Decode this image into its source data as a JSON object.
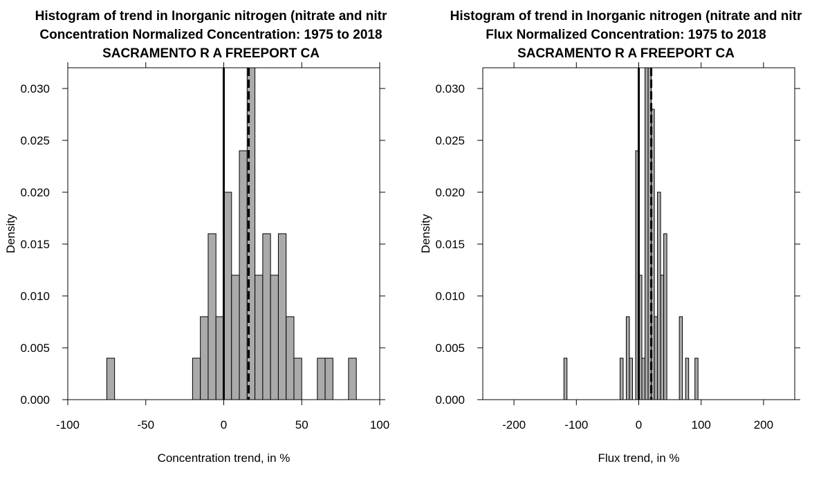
{
  "chart_data": [
    {
      "type": "histogram",
      "title_lines": [
        "Histogram of trend in Inorganic nitrogen (nitrate and nitr",
        "Concentration Normalized Concentration: 1975 to 2018",
        "SACRAMENTO R A FREEPORT CA"
      ],
      "xlabel": "Concentration trend, in %",
      "ylabel": "Density",
      "xlim": [
        -100,
        100
      ],
      "ylim": [
        0,
        0.032
      ],
      "x_ticks": [
        -100,
        -50,
        0,
        50,
        100
      ],
      "x_tick_labels": [
        "-100",
        "-50",
        "0",
        "50",
        "100"
      ],
      "y_ticks": [
        0,
        0.005,
        0.01,
        0.015,
        0.02,
        0.025,
        0.03
      ],
      "y_tick_labels": [
        "0.000",
        "0.005",
        "0.010",
        "0.015",
        "0.020",
        "0.025",
        "0.030"
      ],
      "bar_color": "#aaaaaa",
      "bins": [
        {
          "x0": -75,
          "x1": -70,
          "density": 0.004
        },
        {
          "x0": -20,
          "x1": -15,
          "density": 0.004
        },
        {
          "x0": -15,
          "x1": -10,
          "density": 0.008
        },
        {
          "x0": -10,
          "x1": -5,
          "density": 0.016
        },
        {
          "x0": -5,
          "x1": 0,
          "density": 0.008
        },
        {
          "x0": 0,
          "x1": 5,
          "density": 0.02
        },
        {
          "x0": 5,
          "x1": 10,
          "density": 0.012
        },
        {
          "x0": 10,
          "x1": 15,
          "density": 0.024
        },
        {
          "x0": 15,
          "x1": 20,
          "density": 0.034
        },
        {
          "x0": 20,
          "x1": 25,
          "density": 0.012
        },
        {
          "x0": 25,
          "x1": 30,
          "density": 0.016
        },
        {
          "x0": 30,
          "x1": 35,
          "density": 0.012
        },
        {
          "x0": 35,
          "x1": 40,
          "density": 0.016
        },
        {
          "x0": 40,
          "x1": 45,
          "density": 0.008
        },
        {
          "x0": 45,
          "x1": 50,
          "density": 0.004
        },
        {
          "x0": 60,
          "x1": 65,
          "density": 0.004
        },
        {
          "x0": 65,
          "x1": 70,
          "density": 0.004
        },
        {
          "x0": 80,
          "x1": 85,
          "density": 0.004
        }
      ],
      "reference_lines": [
        {
          "x": 0,
          "style": "solid"
        },
        {
          "x": 16,
          "style": "dashed"
        }
      ]
    },
    {
      "type": "histogram",
      "title_lines": [
        "Histogram of trend in Inorganic nitrogen (nitrate and nitr",
        "Flux Normalized Concentration: 1975 to 2018",
        "SACRAMENTO R A FREEPORT CA"
      ],
      "xlabel": "Flux trend, in %",
      "ylabel": "Density",
      "xlim": [
        -250,
        250
      ],
      "ylim": [
        0,
        0.032
      ],
      "x_ticks": [
        -200,
        -100,
        0,
        100,
        200
      ],
      "x_tick_labels": [
        "-200",
        "-100",
        "0",
        "100",
        "200"
      ],
      "y_ticks": [
        0,
        0.005,
        0.01,
        0.015,
        0.02,
        0.025,
        0.03
      ],
      "y_tick_labels": [
        "0.000",
        "0.005",
        "0.010",
        "0.015",
        "0.020",
        "0.025",
        "0.030"
      ],
      "bar_color": "#aaaaaa",
      "bins": [
        {
          "x0": -120,
          "x1": -115,
          "density": 0.004
        },
        {
          "x0": -30,
          "x1": -25,
          "density": 0.004
        },
        {
          "x0": -20,
          "x1": -15,
          "density": 0.008
        },
        {
          "x0": -15,
          "x1": -10,
          "density": 0.004
        },
        {
          "x0": -5,
          "x1": 0,
          "density": 0.024
        },
        {
          "x0": 0,
          "x1": 5,
          "density": 0.012
        },
        {
          "x0": 5,
          "x1": 10,
          "density": 0.004
        },
        {
          "x0": 10,
          "x1": 15,
          "density": 0.034
        },
        {
          "x0": 15,
          "x1": 20,
          "density": 0.032
        },
        {
          "x0": 20,
          "x1": 25,
          "density": 0.028
        },
        {
          "x0": 25,
          "x1": 30,
          "density": 0.008
        },
        {
          "x0": 30,
          "x1": 35,
          "density": 0.02
        },
        {
          "x0": 35,
          "x1": 40,
          "density": 0.012
        },
        {
          "x0": 40,
          "x1": 45,
          "density": 0.016
        },
        {
          "x0": 65,
          "x1": 70,
          "density": 0.008
        },
        {
          "x0": 75,
          "x1": 80,
          "density": 0.004
        },
        {
          "x0": 90,
          "x1": 95,
          "density": 0.004
        }
      ],
      "reference_lines": [
        {
          "x": 0,
          "style": "solid"
        },
        {
          "x": 20,
          "style": "dashed"
        }
      ]
    }
  ]
}
